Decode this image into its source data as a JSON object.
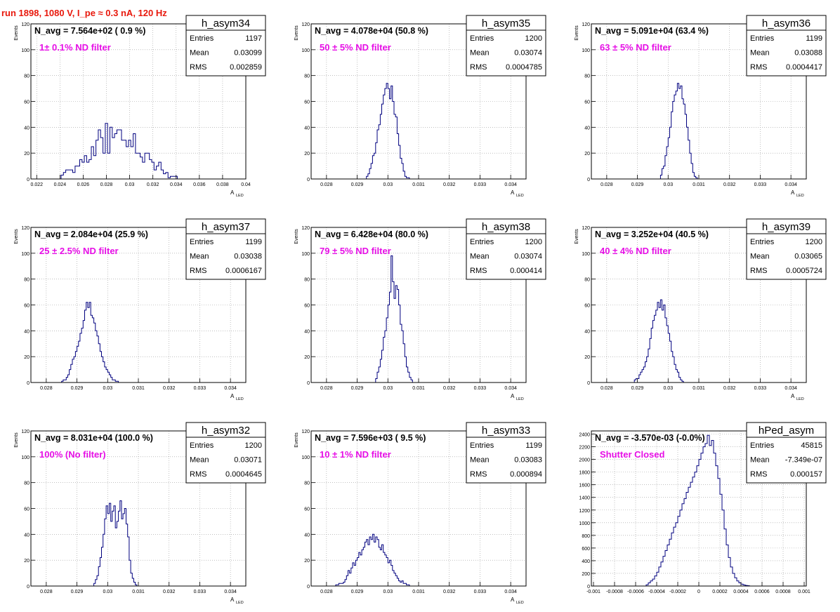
{
  "page": {
    "title": "run 1898,  1080 V, I_pe ≈ 0.3 nA, 120 Hz"
  },
  "colors": {
    "title": "#e8180c",
    "histogram": "#00007f",
    "annotation": "#e60ee6",
    "grid": "#9a9a9a",
    "frame": "#000000"
  },
  "chart_data": [
    {
      "type": "bar",
      "name": "h_asym34",
      "navg": "N_avg = 7.564e+02 ( 0.9 %)",
      "annotation": "1± 0.1% ND filter",
      "stats": {
        "entries_label": "Entries",
        "entries": "1197",
        "mean_label": "Mean",
        "mean": "0.03099",
        "rms_label": "RMS",
        "rms": "0.002859"
      },
      "ylabel": "Events",
      "xlabel": "A",
      "xlabel_sub": "LED",
      "xlim": [
        0.0215,
        0.04
      ],
      "ylim": [
        0,
        120
      ],
      "xticks": [
        0.022,
        0.024,
        0.026,
        0.028,
        0.03,
        0.032,
        0.034,
        0.036,
        0.038,
        0.04
      ],
      "xtick_labels": [
        "0.022",
        "0.024",
        "0.026",
        "0.028",
        "0.03",
        "0.032",
        "0.034",
        "0.036",
        "0.038",
        "0.04"
      ],
      "yticks": [
        0,
        20,
        40,
        60,
        80,
        100,
        120
      ],
      "ytick_labels": [
        "0",
        "20",
        "40",
        "60",
        "80",
        "100",
        "120"
      ],
      "bin_start": 0.0241,
      "bin_width": 0.0002,
      "values": [
        3,
        5,
        7,
        7,
        7,
        5,
        10,
        10,
        15,
        13,
        18,
        13,
        15,
        25,
        18,
        30,
        38,
        32,
        20,
        43,
        20,
        40,
        32,
        35,
        38,
        38,
        30,
        30,
        25,
        30,
        25,
        35,
        20,
        20,
        17,
        13,
        20,
        20,
        15,
        13,
        7,
        10,
        13,
        7,
        4,
        5,
        1,
        2,
        2,
        2
      ]
    },
    {
      "type": "bar",
      "name": "h_asym35",
      "navg": "N_avg = 4.078e+04 (50.8 %)",
      "annotation": "50 ± 5% ND filter",
      "stats": {
        "entries_label": "Entries",
        "entries": "1200",
        "mean_label": "Mean",
        "mean": "0.03074",
        "rms_label": "RMS",
        "rms": "0.0004785"
      },
      "ylabel": "Events",
      "xlabel": "A",
      "xlabel_sub": "LED",
      "xlim": [
        0.0275,
        0.0345
      ],
      "ylim": [
        0,
        120
      ],
      "xticks": [
        0.028,
        0.029,
        0.03,
        0.031,
        0.032,
        0.033,
        0.034
      ],
      "xtick_labels": [
        "0.028",
        "0.029",
        "0.03",
        "0.031",
        "0.032",
        "0.033",
        "0.034"
      ],
      "yticks": [
        0,
        20,
        40,
        60,
        80,
        100,
        120
      ],
      "ytick_labels": [
        "0",
        "20",
        "40",
        "60",
        "80",
        "100",
        "120"
      ],
      "bin_start": 0.0293,
      "bin_width": 5e-05,
      "values": [
        2,
        4,
        8,
        12,
        18,
        20,
        28,
        38,
        42,
        50,
        58,
        65,
        70,
        74,
        70,
        62,
        72,
        60,
        50,
        48,
        35,
        26,
        16,
        12,
        6,
        2,
        1,
        1
      ]
    },
    {
      "type": "bar",
      "name": "h_asym36",
      "navg": "N_avg = 5.091e+04 (63.4 %)",
      "annotation": "63 ± 5% ND filter",
      "stats": {
        "entries_label": "Entries",
        "entries": "1199",
        "mean_label": "Mean",
        "mean": "0.03088",
        "rms_label": "RMS",
        "rms": "0.0004417"
      },
      "ylabel": "Events",
      "xlabel": "A",
      "xlabel_sub": "LED",
      "xlim": [
        0.0275,
        0.0345
      ],
      "ylim": [
        0,
        120
      ],
      "xticks": [
        0.028,
        0.029,
        0.03,
        0.031,
        0.032,
        0.033,
        0.034
      ],
      "xtick_labels": [
        "0.028",
        "0.029",
        "0.03",
        "0.031",
        "0.032",
        "0.033",
        "0.034"
      ],
      "yticks": [
        0,
        20,
        40,
        60,
        80,
        100,
        120
      ],
      "ytick_labels": [
        "0",
        "20",
        "40",
        "60",
        "80",
        "100",
        "120"
      ],
      "bin_start": 0.02975,
      "bin_width": 5e-05,
      "values": [
        3,
        8,
        10,
        18,
        25,
        32,
        40,
        52,
        60,
        65,
        68,
        74,
        70,
        72,
        62,
        58,
        50,
        40,
        30,
        20,
        12,
        5,
        2,
        1
      ]
    },
    {
      "type": "bar",
      "name": "h_asym37",
      "navg": "N_avg = 2.084e+04 (25.9 %)",
      "annotation": "25 ± 2.5% ND filter",
      "stats": {
        "entries_label": "Entries",
        "entries": "1199",
        "mean_label": "Mean",
        "mean": "0.03038",
        "rms_label": "RMS",
        "rms": "0.0006167"
      },
      "ylabel": "Events",
      "xlabel": "A",
      "xlabel_sub": "LED",
      "xlim": [
        0.0275,
        0.0345
      ],
      "ylim": [
        0,
        120
      ],
      "xticks": [
        0.028,
        0.029,
        0.03,
        0.031,
        0.032,
        0.033,
        0.034
      ],
      "xtick_labels": [
        "0.028",
        "0.029",
        "0.03",
        "0.031",
        "0.032",
        "0.033",
        "0.034"
      ],
      "yticks": [
        0,
        20,
        40,
        60,
        80,
        100,
        120
      ],
      "ytick_labels": [
        "0",
        "20",
        "40",
        "60",
        "80",
        "100",
        "120"
      ],
      "bin_start": 0.0285,
      "bin_width": 5e-05,
      "values": [
        1,
        2,
        2,
        4,
        6,
        10,
        14,
        18,
        20,
        24,
        28,
        32,
        38,
        42,
        48,
        56,
        62,
        58,
        62,
        52,
        50,
        46,
        40,
        36,
        30,
        24,
        20,
        16,
        12,
        10,
        8,
        6,
        4,
        2,
        2,
        1,
        1
      ]
    },
    {
      "type": "bar",
      "name": "h_asym38",
      "navg": "N_avg = 6.428e+04 (80.0 %)",
      "annotation": "79 ± 5% ND filter",
      "stats": {
        "entries_label": "Entries",
        "entries": "1200",
        "mean_label": "Mean",
        "mean": "0.03074",
        "rms_label": "RMS",
        "rms": "0.000414"
      },
      "ylabel": "Events",
      "xlabel": "A",
      "xlabel_sub": "LED",
      "xlim": [
        0.0275,
        0.0345
      ],
      "ylim": [
        0,
        120
      ],
      "xticks": [
        0.028,
        0.029,
        0.03,
        0.031,
        0.032,
        0.033,
        0.034
      ],
      "xtick_labels": [
        "0.028",
        "0.029",
        "0.03",
        "0.031",
        "0.032",
        "0.033",
        "0.034"
      ],
      "yticks": [
        0,
        20,
        40,
        60,
        80,
        100,
        120
      ],
      "ytick_labels": [
        "0",
        "20",
        "40",
        "60",
        "80",
        "100",
        "120"
      ],
      "bin_start": 0.0296,
      "bin_width": 5e-05,
      "values": [
        3,
        8,
        12,
        18,
        25,
        35,
        40,
        50,
        60,
        70,
        98,
        78,
        65,
        75,
        72,
        60,
        45,
        40,
        30,
        20,
        12,
        8,
        4,
        2
      ]
    },
    {
      "type": "bar",
      "name": "h_asym39",
      "navg": "N_avg = 3.252e+04 (40.5 %)",
      "annotation": "40 ± 4% ND filter",
      "stats": {
        "entries_label": "Entries",
        "entries": "1200",
        "mean_label": "Mean",
        "mean": "0.03065",
        "rms_label": "RMS",
        "rms": "0.0005724"
      },
      "ylabel": "Events",
      "xlabel": "A",
      "xlabel_sub": "LED",
      "xlim": [
        0.0275,
        0.0345
      ],
      "ylim": [
        0,
        120
      ],
      "xticks": [
        0.028,
        0.029,
        0.03,
        0.031,
        0.032,
        0.033,
        0.034
      ],
      "xtick_labels": [
        "0.028",
        "0.029",
        "0.03",
        "0.031",
        "0.032",
        "0.033",
        "0.034"
      ],
      "yticks": [
        0,
        20,
        40,
        60,
        80,
        100,
        120
      ],
      "ytick_labels": [
        "0",
        "20",
        "40",
        "60",
        "80",
        "100",
        "120"
      ],
      "bin_start": 0.0289,
      "bin_width": 5e-05,
      "values": [
        2,
        3,
        3,
        6,
        8,
        10,
        12,
        16,
        20,
        26,
        34,
        42,
        48,
        52,
        56,
        62,
        58,
        64,
        56,
        60,
        50,
        44,
        38,
        32,
        24,
        20,
        14,
        10,
        8,
        4,
        2,
        1
      ]
    },
    {
      "type": "bar",
      "name": "h_asym32",
      "navg": "N_avg = 8.031e+04 (100.0 %)",
      "annotation": "100% (No filter)",
      "stats": {
        "entries_label": "Entries",
        "entries": "1200",
        "mean_label": "Mean",
        "mean": "0.03071",
        "rms_label": "RMS",
        "rms": "0.0004645"
      },
      "ylabel": "Events",
      "xlabel": "A",
      "xlabel_sub": "LED",
      "xlim": [
        0.0275,
        0.0345
      ],
      "ylim": [
        0,
        120
      ],
      "xticks": [
        0.028,
        0.029,
        0.03,
        0.031,
        0.032,
        0.033,
        0.034
      ],
      "xtick_labels": [
        "0.028",
        "0.029",
        "0.03",
        "0.031",
        "0.032",
        "0.033",
        "0.034"
      ],
      "yticks": [
        0,
        20,
        40,
        60,
        80,
        100,
        120
      ],
      "ytick_labels": [
        "0",
        "20",
        "40",
        "60",
        "80",
        "100",
        "120"
      ],
      "bin_start": 0.02955,
      "bin_width": 5e-05,
      "values": [
        2,
        5,
        8,
        15,
        22,
        30,
        40,
        52,
        62,
        56,
        64,
        50,
        58,
        62,
        45,
        50,
        58,
        66,
        52,
        56,
        60,
        48,
        38,
        20,
        10,
        6,
        3,
        1
      ]
    },
    {
      "type": "bar",
      "name": "h_asym33",
      "navg": "N_avg = 7.596e+03 ( 9.5 %)",
      "annotation": "10 ± 1% ND filter",
      "stats": {
        "entries_label": "Entries",
        "entries": "1199",
        "mean_label": "Mean",
        "mean": "0.03083",
        "rms_label": "RMS",
        "rms": "0.000894"
      },
      "ylabel": "Events",
      "xlabel": "A",
      "xlabel_sub": "LED",
      "xlim": [
        0.0275,
        0.0345
      ],
      "ylim": [
        0,
        120
      ],
      "xticks": [
        0.028,
        0.029,
        0.03,
        0.031,
        0.032,
        0.033,
        0.034
      ],
      "xtick_labels": [
        "0.028",
        "0.029",
        "0.03",
        "0.031",
        "0.032",
        "0.033",
        "0.034"
      ],
      "yticks": [
        0,
        20,
        40,
        60,
        80,
        100,
        120
      ],
      "ytick_labels": [
        "0",
        "20",
        "40",
        "60",
        "80",
        "100",
        "120"
      ],
      "bin_start": 0.0283,
      "bin_width": 5e-05,
      "values": [
        1,
        1,
        2,
        2,
        2,
        3,
        5,
        8,
        12,
        10,
        14,
        18,
        16,
        20,
        22,
        26,
        24,
        28,
        30,
        34,
        36,
        32,
        38,
        36,
        40,
        34,
        38,
        36,
        30,
        28,
        32,
        26,
        24,
        22,
        18,
        20,
        16,
        12,
        10,
        8,
        6,
        4,
        3,
        4,
        2,
        2,
        1,
        1
      ]
    },
    {
      "type": "bar",
      "name": "hPed_asym",
      "navg": "N_avg = -3.570e-03 (-0.0%)",
      "annotation": "Shutter Closed",
      "stats": {
        "entries_label": "Entries",
        "entries": "45815",
        "mean_label": "Mean",
        "mean": "-7.349e-07",
        "rms_label": "RMS",
        "rms": "0.000157"
      },
      "ylabel": "",
      "xlabel": "",
      "xlabel_sub": "",
      "xlim": [
        -0.00102,
        0.00102
      ],
      "ylim": [
        0,
        2450
      ],
      "xticks": [
        -0.001,
        -0.0008,
        -0.0006,
        -0.0004,
        -0.0002,
        0,
        0.0002,
        0.0004,
        0.0006,
        0.0008,
        0.001
      ],
      "xtick_labels": [
        "-0.001",
        "-0.0008",
        "-0.0006",
        "-0.0004",
        "-0.0002",
        "0",
        "0.0002",
        "0.0004",
        "0.0006",
        "0.0008",
        "0.001"
      ],
      "yticks": [
        0,
        200,
        400,
        600,
        800,
        1000,
        1200,
        1400,
        1600,
        1800,
        2000,
        2200,
        2400
      ],
      "ytick_labels": [
        "0",
        "200",
        "400",
        "600",
        "800",
        "1000",
        "1200",
        "1400",
        "1600",
        "1800",
        "2000",
        "2200",
        "2400"
      ],
      "bin_start": -0.0005,
      "bin_width": 2e-05,
      "values": [
        20,
        50,
        80,
        110,
        160,
        220,
        300,
        380,
        470,
        560,
        650,
        740,
        840,
        930,
        1000,
        1100,
        1200,
        1300,
        1380,
        1480,
        1560,
        1640,
        1720,
        1800,
        1900,
        2000,
        2100,
        2200,
        2250,
        2380,
        2220,
        2300,
        2100,
        1900,
        1700,
        1450,
        1200,
        900,
        650,
        450,
        300,
        200,
        130,
        80,
        50,
        30,
        18,
        10,
        5
      ]
    }
  ]
}
